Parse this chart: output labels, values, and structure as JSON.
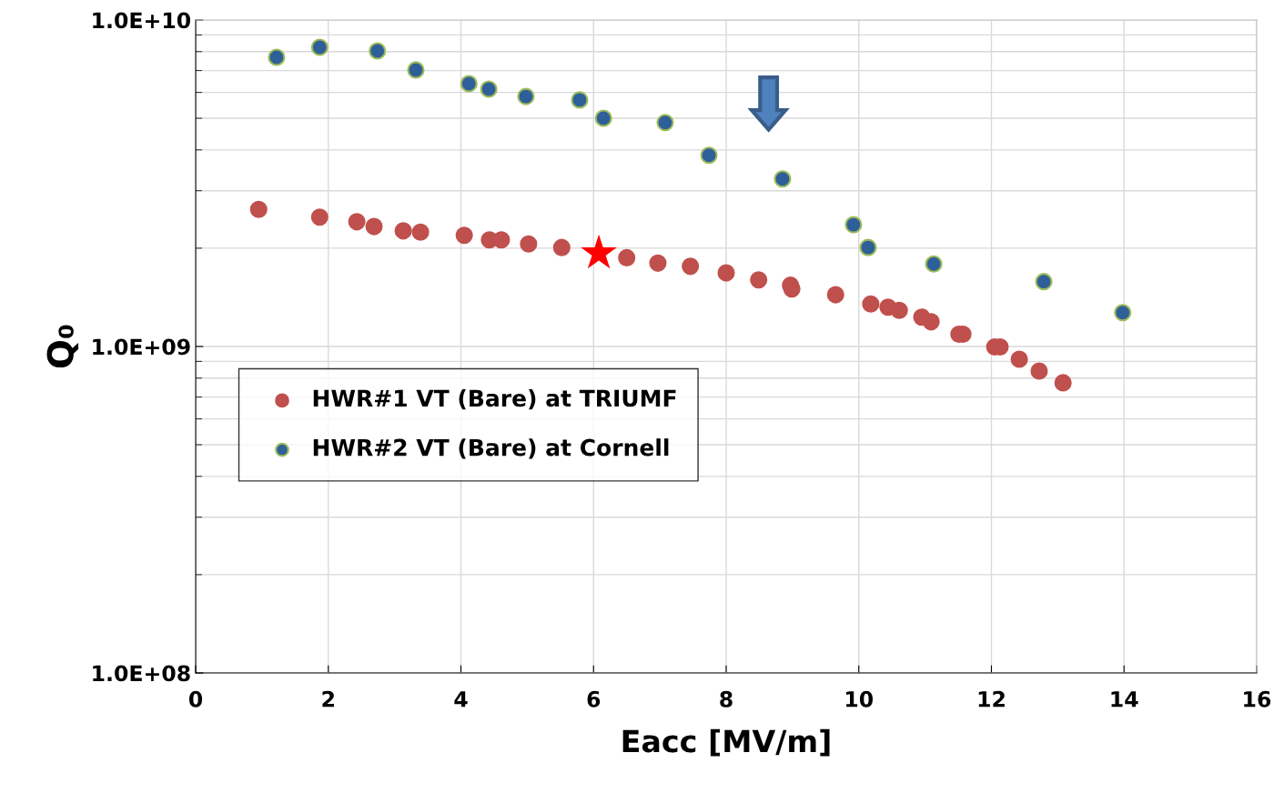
{
  "chart_data": {
    "type": "scatter",
    "xlabel": "Eacc [MV/m]",
    "ylabel": "Q₀",
    "xlim": [
      0,
      16
    ],
    "xticks": [
      0,
      2,
      4,
      6,
      8,
      10,
      12,
      14,
      16
    ],
    "ylim": [
      100000000,
      10000000000
    ],
    "yticks": [
      {
        "value": 100000000,
        "label": "1.0E+08"
      },
      {
        "value": 1000000000,
        "label": "1.0E+09"
      },
      {
        "value": 10000000000,
        "label": "1.0E+10"
      }
    ],
    "log": "y",
    "grid": true,
    "legend": "center left",
    "marker": "circle",
    "series": [
      {
        "name": "HWR#1 VT (Bare) at TRIUMF",
        "color": "#c0504d",
        "x": [
          0.95,
          1.87,
          2.43,
          2.69,
          3.13,
          3.39,
          4.05,
          4.43,
          4.61,
          5.02,
          5.52,
          6.0,
          6.5,
          6.97,
          7.46,
          8.0,
          8.49,
          8.97,
          8.99,
          9.65,
          10.18,
          10.44,
          10.61,
          10.95,
          11.09,
          11.51,
          11.57,
          12.05,
          12.13,
          12.42,
          12.72,
          13.08
        ],
        "values": [
          2630000000,
          2490000000,
          2410000000,
          2330000000,
          2260000000,
          2240000000,
          2190000000,
          2120000000,
          2120000000,
          2060000000,
          2010000000,
          null,
          1870000000,
          1800000000,
          1760000000,
          1680000000,
          1600000000,
          1540000000,
          1500000000,
          1440000000,
          1350000000,
          1320000000,
          1290000000,
          1230000000,
          1190000000,
          1090000000,
          1090000000,
          997000000,
          997000000,
          914000000,
          841000000,
          774000000
        ]
      },
      {
        "name": "HWR#2 VT (Bare) at Cornell",
        "color": "#2f5f98",
        "x": [
          1.22,
          1.87,
          2.74,
          3.32,
          4.12,
          4.42,
          4.98,
          5.79,
          6.15,
          7.08,
          7.74,
          8.85,
          9.92,
          10.14,
          11.13,
          12.79,
          13.98
        ],
        "values": [
          7690000000,
          8250000000,
          8040000000,
          7030000000,
          6380000000,
          6140000000,
          5830000000,
          5690000000,
          5000000000,
          4850000000,
          3850000000,
          3260000000,
          2360000000,
          2010000000,
          1790000000,
          1580000000,
          1270000000
        ]
      },
      {
        "color": "#ff0000",
        "marker": "star",
        "x": [
          6.08
        ],
        "values": [
          1930000000
        ]
      }
    ]
  }
}
